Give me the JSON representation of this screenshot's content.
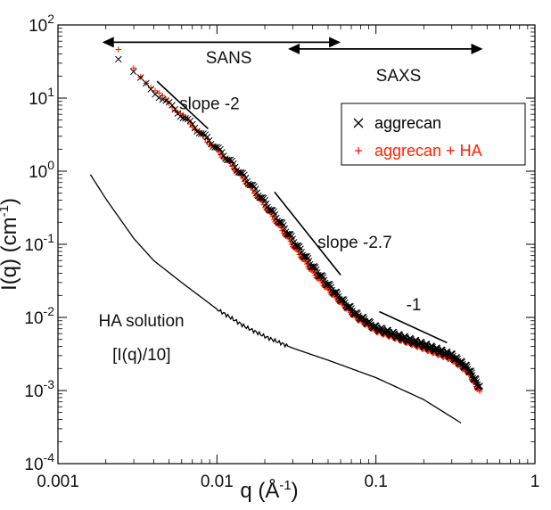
{
  "chart_data": {
    "type": "scatter",
    "xscale": "log",
    "yscale": "log",
    "xlim": [
      0.001,
      1
    ],
    "ylim": [
      0.0001,
      100
    ],
    "xlabel": "q  (Å",
    "xlabel_sup": "-1",
    "ylabel": "I(q)  (cm",
    "ylabel_sup": "-1",
    "x_ticks": [
      {
        "value": 0.001,
        "label": "0.001"
      },
      {
        "value": 0.01,
        "label": "0.01"
      },
      {
        "value": 0.1,
        "label": "0.1"
      },
      {
        "value": 1,
        "label": "1"
      }
    ],
    "y_ticks": [
      {
        "value": 0.0001,
        "base": "10",
        "exp": "-4"
      },
      {
        "value": 0.001,
        "base": "10",
        "exp": "-3"
      },
      {
        "value": 0.01,
        "base": "10",
        "exp": "-2"
      },
      {
        "value": 0.1,
        "base": "10",
        "exp": "-1"
      },
      {
        "value": 1,
        "base": "10",
        "exp": "0"
      },
      {
        "value": 10,
        "base": "10",
        "exp": "1"
      },
      {
        "value": 100,
        "base": "10",
        "exp": "2"
      }
    ],
    "legend": {
      "position": "top-right",
      "entries": [
        {
          "label": "aggrecan",
          "marker": "x",
          "color": "#000000"
        },
        {
          "label": "aggrecan + HA",
          "marker": "+",
          "color": "#ff2200"
        }
      ]
    },
    "series": [
      {
        "name": "aggrecan",
        "marker": "x",
        "color": "#000000",
        "points": [
          [
            0.0024,
            34
          ],
          [
            0.0032,
            19
          ],
          [
            0.0045,
            10
          ],
          [
            0.0065,
            5.0
          ],
          [
            0.009,
            2.6
          ],
          [
            0.012,
            1.4
          ],
          [
            0.016,
            0.7
          ],
          [
            0.02,
            0.38
          ],
          [
            0.025,
            0.2
          ],
          [
            0.032,
            0.095
          ],
          [
            0.04,
            0.05
          ],
          [
            0.05,
            0.028
          ],
          [
            0.06,
            0.018
          ],
          [
            0.075,
            0.011
          ],
          [
            0.1,
            0.0072
          ],
          [
            0.15,
            0.0052
          ],
          [
            0.2,
            0.0042
          ],
          [
            0.3,
            0.003
          ],
          [
            0.38,
            0.002
          ],
          [
            0.45,
            0.0011
          ]
        ]
      },
      {
        "name": "aggrecan + HA",
        "marker": "+",
        "color": "#ff2200",
        "points": [
          [
            0.0024,
            44
          ],
          [
            0.0032,
            21
          ],
          [
            0.0045,
            10.5
          ],
          [
            0.0065,
            5.0
          ],
          [
            0.009,
            2.4
          ],
          [
            0.012,
            1.3
          ],
          [
            0.016,
            0.62
          ],
          [
            0.02,
            0.33
          ],
          [
            0.025,
            0.17
          ],
          [
            0.032,
            0.08
          ],
          [
            0.04,
            0.042
          ],
          [
            0.05,
            0.024
          ],
          [
            0.06,
            0.016
          ],
          [
            0.075,
            0.01
          ],
          [
            0.1,
            0.0066
          ],
          [
            0.15,
            0.0048
          ],
          [
            0.2,
            0.0038
          ],
          [
            0.3,
            0.0027
          ],
          [
            0.38,
            0.0018
          ],
          [
            0.45,
            0.00095
          ]
        ]
      },
      {
        "name": "HA solution",
        "line": true,
        "color": "#000000",
        "points": [
          [
            0.0016,
            0.9
          ],
          [
            0.002,
            0.42
          ],
          [
            0.003,
            0.12
          ],
          [
            0.004,
            0.06
          ],
          [
            0.006,
            0.03
          ],
          [
            0.01,
            0.013
          ],
          [
            0.015,
            0.0075
          ],
          [
            0.02,
            0.0055
          ],
          [
            0.03,
            0.0038
          ],
          [
            0.05,
            0.0026
          ],
          [
            0.1,
            0.0015
          ],
          [
            0.2,
            0.00075
          ],
          [
            0.35,
            0.00035
          ]
        ]
      }
    ],
    "slope_lines": [
      {
        "label": "slope -2",
        "from": [
          0.0042,
          17
        ],
        "to": [
          0.0088,
          3.8
        ],
        "label_at": [
          0.0058,
          7
        ]
      },
      {
        "label": "slope -2.7",
        "from": [
          0.023,
          0.52
        ],
        "to": [
          0.06,
          0.038
        ],
        "label_at": [
          0.043,
          0.09
        ]
      },
      {
        "label": "-1",
        "from": [
          0.105,
          0.012
        ],
        "to": [
          0.28,
          0.0045
        ],
        "label_at": [
          0.155,
          0.0125
        ]
      }
    ],
    "range_arrows": [
      {
        "label": "SANS",
        "from": 0.0019,
        "to": 0.06,
        "y": 58,
        "label_at": [
          0.0085,
          30
        ]
      },
      {
        "label": "SAXS",
        "from": 0.028,
        "to": 0.47,
        "y": 47,
        "label_at": [
          0.1,
          17
        ]
      }
    ],
    "annotations": [
      {
        "text": "HA solution",
        "at": [
          0.0018,
          0.0075
        ]
      },
      {
        "text": "[I(q)/10]",
        "at": [
          0.0022,
          0.0026
        ]
      }
    ]
  }
}
